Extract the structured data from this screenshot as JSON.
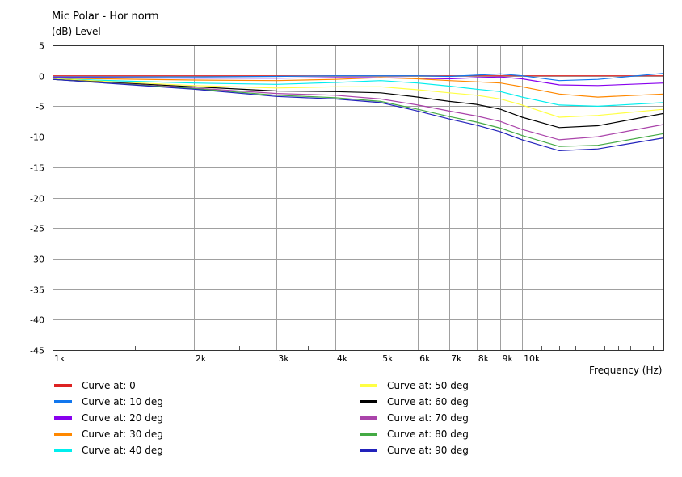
{
  "chart_data": {
    "type": "line",
    "title": "Mic Polar - Hor norm",
    "ylabel": "(dB)  Level",
    "xlabel": "Frequency  (Hz)",
    "x_scale": "log",
    "xlim": [
      1000,
      20000
    ],
    "ylim": [
      -45,
      5
    ],
    "y_ticks": [
      5,
      0,
      -5,
      -10,
      -15,
      -20,
      -25,
      -30,
      -35,
      -40,
      -45
    ],
    "x_ticks": [
      {
        "value": 1000,
        "label": "1k"
      },
      {
        "value": 2000,
        "label": "2k"
      },
      {
        "value": 3000,
        "label": "3k"
      },
      {
        "value": 4000,
        "label": "4k"
      },
      {
        "value": 5000,
        "label": "5k"
      },
      {
        "value": 6000,
        "label": "6k"
      },
      {
        "value": 7000,
        "label": "7k"
      },
      {
        "value": 8000,
        "label": "8k"
      },
      {
        "value": 9000,
        "label": "9k"
      },
      {
        "value": 10000,
        "label": "10k"
      }
    ],
    "grid": true,
    "x": [
      1000,
      2000,
      3000,
      4000,
      5000,
      6000,
      7000,
      8000,
      9000,
      10000,
      12000,
      14500,
      20000
    ],
    "series": [
      {
        "name": "Curve at: 0",
        "color": "#dd2222",
        "values": [
          0,
          0,
          0,
          0,
          0,
          0,
          0,
          0,
          0,
          0,
          0,
          0,
          0
        ]
      },
      {
        "name": "Curve at: 10 deg",
        "color": "#1177ee",
        "values": [
          -0.2,
          -0.2,
          -0.1,
          0,
          0,
          0,
          -0.1,
          0.1,
          0.3,
          0,
          -0.8,
          -0.6,
          0.4
        ]
      },
      {
        "name": "Curve at: 20 deg",
        "color": "#8800ee",
        "values": [
          -0.3,
          -0.4,
          -0.4,
          -0.3,
          -0.3,
          -0.4,
          -0.5,
          -0.3,
          -0.2,
          -0.5,
          -1.5,
          -1.6,
          -1.2
        ]
      },
      {
        "name": "Curve at: 30 deg",
        "color": "#ff8800",
        "values": [
          -0.4,
          -0.7,
          -0.8,
          -0.6,
          -0.3,
          -0.5,
          -0.8,
          -1.0,
          -1.2,
          -1.8,
          -3.0,
          -3.5,
          -3.0
        ]
      },
      {
        "name": "Curve at: 40 deg",
        "color": "#00eeee",
        "values": [
          -0.5,
          -1.2,
          -1.4,
          -1.1,
          -0.8,
          -1.2,
          -1.7,
          -2.2,
          -2.6,
          -3.5,
          -4.8,
          -5.0,
          -4.4
        ]
      },
      {
        "name": "Curve at: 50 deg",
        "color": "#ffff44",
        "values": [
          -0.5,
          -1.6,
          -2.0,
          -1.8,
          -1.8,
          -2.3,
          -2.8,
          -3.2,
          -3.8,
          -4.8,
          -6.8,
          -6.5,
          -5.5
        ]
      },
      {
        "name": "Curve at: 60 deg",
        "color": "#000000",
        "values": [
          -0.6,
          -1.8,
          -2.5,
          -2.6,
          -2.8,
          -3.5,
          -4.2,
          -4.7,
          -5.5,
          -6.8,
          -8.5,
          -8.2,
          -6.2
        ]
      },
      {
        "name": "Curve at: 70 deg",
        "color": "#aa44aa",
        "values": [
          -0.6,
          -2.0,
          -2.9,
          -3.2,
          -3.8,
          -4.8,
          -5.8,
          -6.6,
          -7.5,
          -8.8,
          -10.5,
          -10.0,
          -8.0
        ]
      },
      {
        "name": "Curve at: 80 deg",
        "color": "#44aa44",
        "values": [
          -0.6,
          -2.1,
          -3.2,
          -3.6,
          -4.2,
          -5.5,
          -6.7,
          -7.6,
          -8.6,
          -9.8,
          -11.6,
          -11.4,
          -9.5
        ]
      },
      {
        "name": "Curve at: 90 deg",
        "color": "#2222bb",
        "values": [
          -0.6,
          -2.2,
          -3.4,
          -3.8,
          -4.4,
          -5.8,
          -7.1,
          -8.1,
          -9.2,
          -10.5,
          -12.3,
          -12.0,
          -10.2
        ]
      }
    ]
  }
}
